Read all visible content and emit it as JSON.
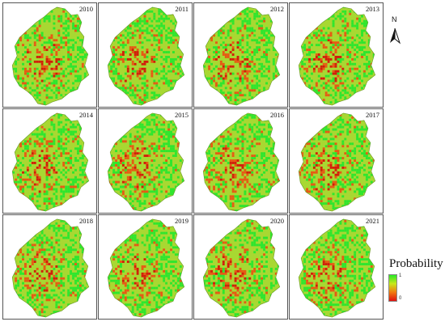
{
  "figure": {
    "panels": [
      {
        "year": "2010"
      },
      {
        "year": "2011"
      },
      {
        "year": "2012"
      },
      {
        "year": "2013"
      },
      {
        "year": "2014"
      },
      {
        "year": "2015"
      },
      {
        "year": "2016"
      },
      {
        "year": "2017"
      },
      {
        "year": "2018"
      },
      {
        "year": "2019"
      },
      {
        "year": "2020"
      },
      {
        "year": "2021"
      }
    ],
    "north_label": "N",
    "legend": {
      "title": "Probability",
      "max_label": "1",
      "min_label": "0",
      "gradient_colors": [
        "#26e826",
        "#c8e81c",
        "#f07a10",
        "#e01010"
      ]
    },
    "colors": {
      "high": "#2ee62e",
      "mid": "#a8d832",
      "low": "#e65a14",
      "very_low": "#d21e0a"
    }
  }
}
